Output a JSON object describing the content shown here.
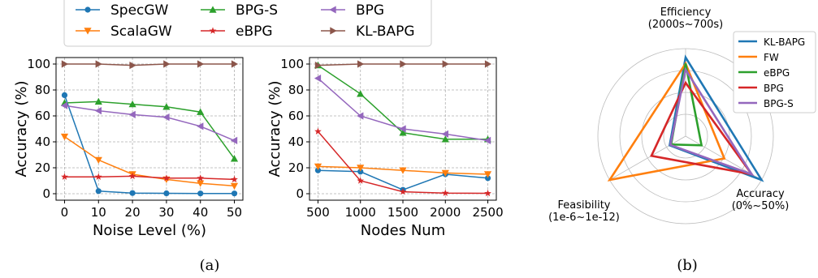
{
  "legend_a": [
    "SpecGW",
    "ScalaGW",
    "BPG-S",
    "eBPG",
    "BPG",
    "KL-BAPG"
  ],
  "panel_labels": [
    "(a)",
    "(b)"
  ],
  "chart_data": [
    {
      "type": "line",
      "xlabel": "Noise Level (%)",
      "ylabel": "Accuracy (%)",
      "x": [
        0,
        10,
        20,
        30,
        40,
        50
      ],
      "xlim": [
        -2.5,
        52.5
      ],
      "ylim": [
        -5,
        105
      ],
      "xticks": [
        0,
        10,
        20,
        30,
        40,
        50
      ],
      "yticks": [
        0,
        20,
        40,
        60,
        80,
        100
      ],
      "grid": true,
      "series": [
        {
          "name": "SpecGW",
          "color": "#1f77b4",
          "marker": "circle",
          "values": [
            76,
            2,
            0.5,
            0.3,
            0.2,
            0.2
          ]
        },
        {
          "name": "ScalaGW",
          "color": "#ff7f0e",
          "marker": "triangle-down",
          "values": [
            44,
            26,
            15,
            11,
            8,
            6
          ]
        },
        {
          "name": "BPG-S",
          "color": "#2ca02c",
          "marker": "triangle-up",
          "values": [
            70,
            71,
            69,
            67,
            63,
            27
          ]
        },
        {
          "name": "eBPG",
          "color": "#d62728",
          "marker": "star",
          "values": [
            13,
            13,
            13.5,
            12,
            12,
            11
          ]
        },
        {
          "name": "BPG",
          "color": "#9467bd",
          "marker": "triangle-left",
          "values": [
            68,
            64,
            61,
            59,
            52,
            41
          ]
        },
        {
          "name": "KL-BAPG",
          "color": "#8c564b",
          "marker": "triangle-right",
          "values": [
            100,
            100,
            99,
            100,
            100,
            100
          ]
        }
      ]
    },
    {
      "type": "line",
      "xlabel": "Nodes Num",
      "ylabel": "Accuracy (%)",
      "x": [
        500,
        1000,
        1500,
        2000,
        2500
      ],
      "xlim": [
        400,
        2600
      ],
      "ylim": [
        -5,
        105
      ],
      "xticks": [
        500,
        1000,
        1500,
        2000,
        2500
      ],
      "yticks": [
        0,
        20,
        40,
        60,
        80,
        100
      ],
      "grid": true,
      "series": [
        {
          "name": "SpecGW",
          "color": "#1f77b4",
          "marker": "circle",
          "values": [
            18,
            17,
            3,
            15,
            12
          ]
        },
        {
          "name": "ScalaGW",
          "color": "#ff7f0e",
          "marker": "triangle-down",
          "values": [
            21,
            20,
            18,
            16,
            15
          ]
        },
        {
          "name": "BPG-S",
          "color": "#2ca02c",
          "marker": "triangle-up",
          "values": [
            99,
            77,
            47,
            42,
            42
          ]
        },
        {
          "name": "eBPG",
          "color": "#d62728",
          "marker": "star",
          "values": [
            48,
            10,
            1.5,
            0.5,
            0.3
          ]
        },
        {
          "name": "BPG",
          "color": "#9467bd",
          "marker": "triangle-left",
          "values": [
            89,
            60,
            50,
            46,
            41
          ]
        },
        {
          "name": "KL-BAPG",
          "color": "#8c564b",
          "marker": "triangle-right",
          "values": [
            99,
            100,
            100,
            100,
            100
          ]
        }
      ]
    },
    {
      "type": "radar",
      "axes": [
        {
          "label": "Efficiency\n(2000s~700s)"
        },
        {
          "label": "Accuracy\n(0%~50%)"
        },
        {
          "label": "Feasibility\n(1e-6~1e-12)"
        }
      ],
      "range": [
        0,
        1
      ],
      "legend_position": "top-right",
      "series": [
        {
          "name": "KL-BAPG",
          "color": "#1f77b4",
          "values": [
            0.9,
            1.0,
            0.21
          ]
        },
        {
          "name": "FW",
          "color": "#ff7f0e",
          "values": [
            0.83,
            0.51,
            1.0
          ]
        },
        {
          "name": "eBPG",
          "color": "#2ca02c",
          "values": [
            0.83,
            0.21,
            0.19
          ]
        },
        {
          "name": "BPG",
          "color": "#d62728",
          "values": [
            0.61,
            0.87,
            0.45
          ]
        },
        {
          "name": "BPG-S",
          "color": "#9467bd",
          "values": [
            0.76,
            0.87,
            0.2
          ]
        }
      ]
    }
  ]
}
